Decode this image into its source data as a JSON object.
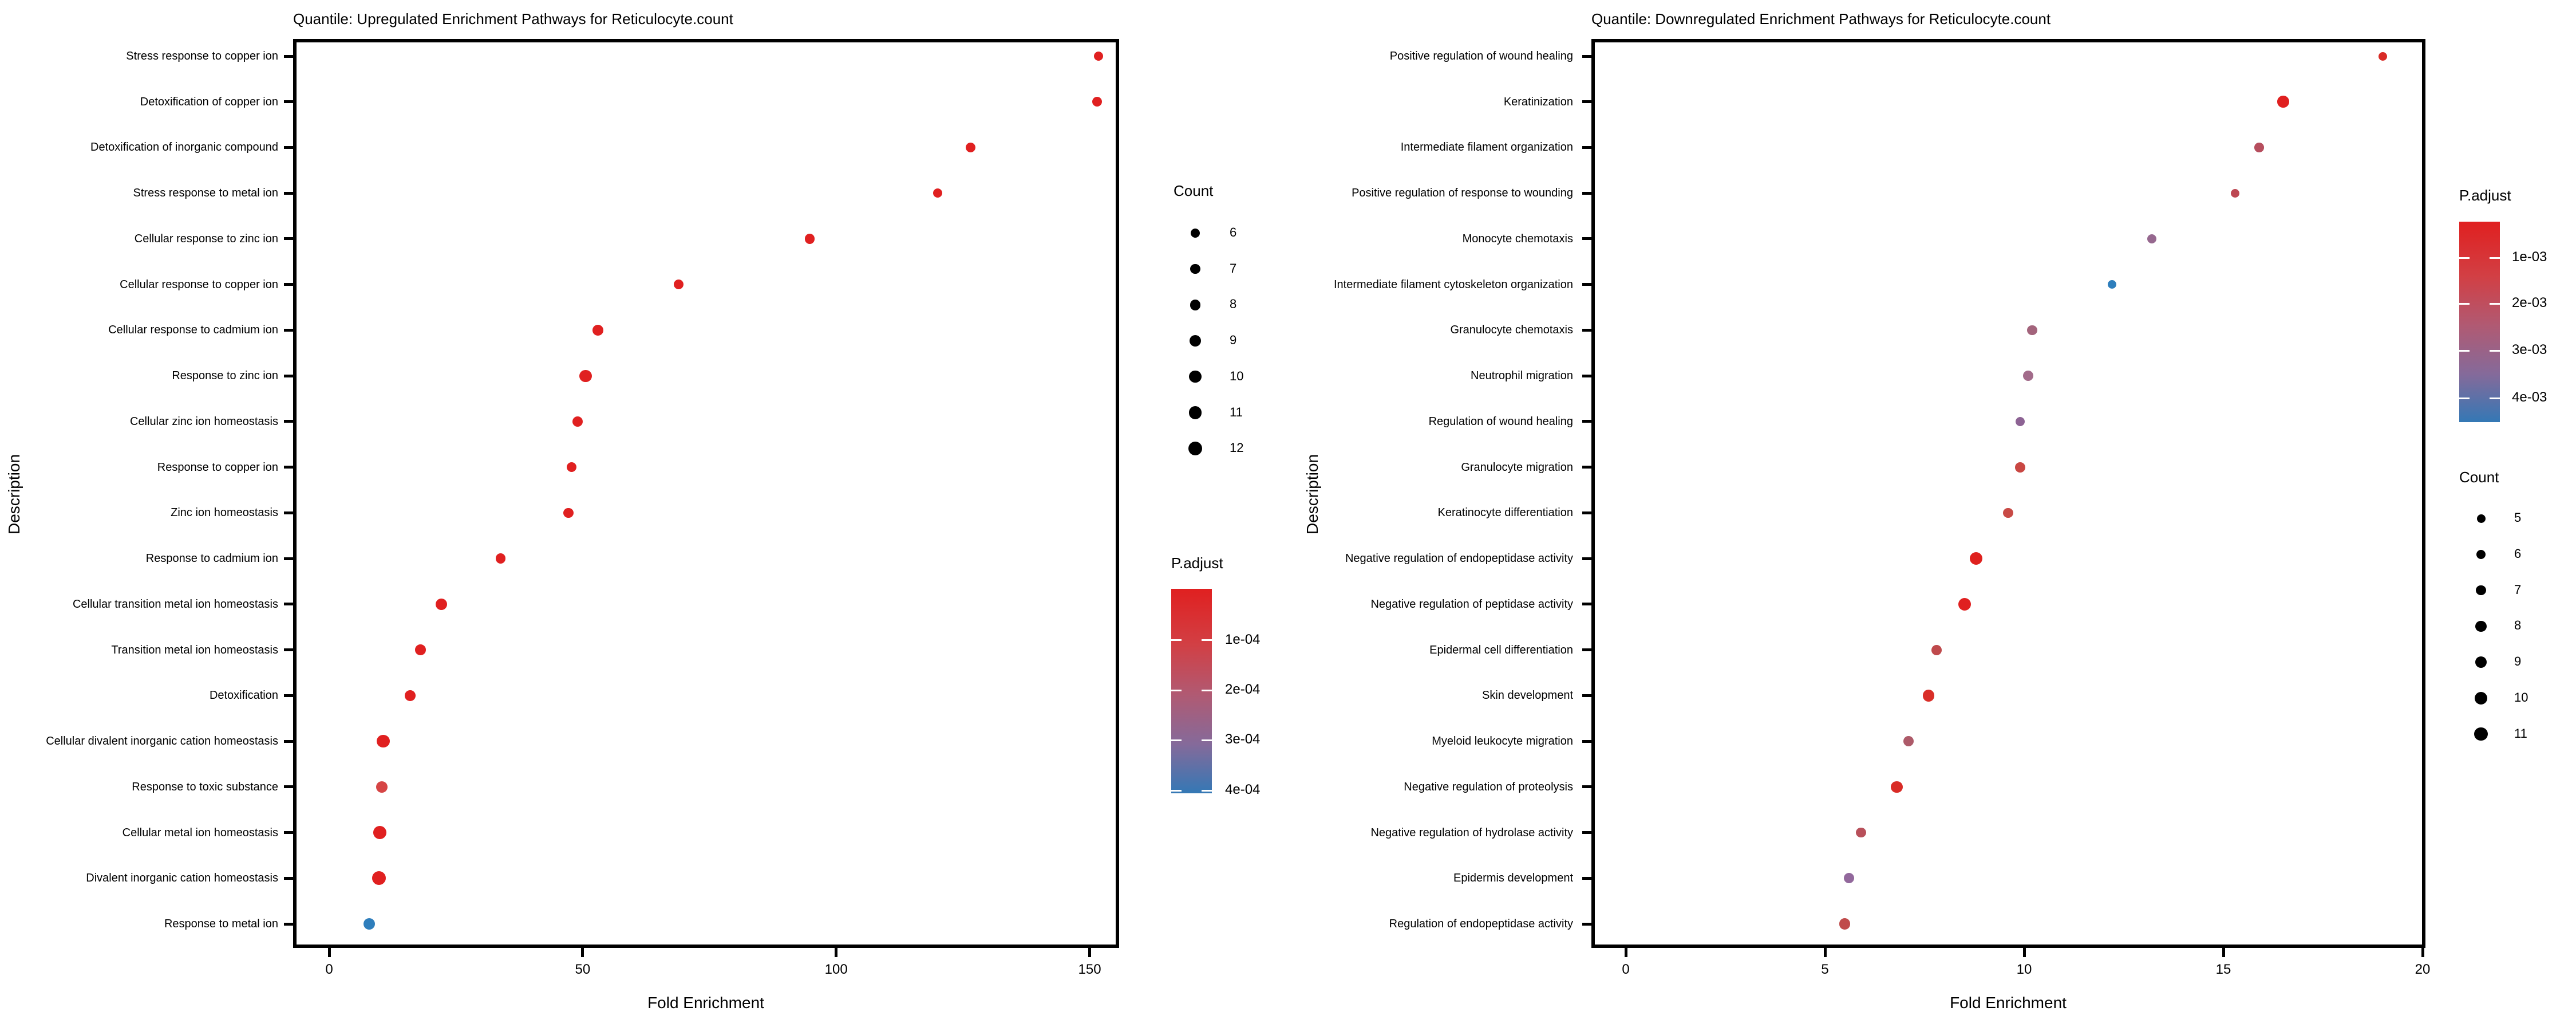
{
  "figure": {
    "background": "#ffffff"
  },
  "chart_data": [
    {
      "type": "scatter",
      "title": "Quantile: Upregulated Enrichment Pathways for Reticulocyte.count",
      "xlabel": "Fold Enrichment",
      "ylabel": "Description",
      "xlim": [
        0,
        156
      ],
      "grid": false,
      "x_ticks": [
        0,
        50,
        100,
        150
      ],
      "categories": [
        "Stress response to copper ion",
        "Detoxification of copper ion",
        "Detoxification of inorganic compound",
        "Stress response to metal ion",
        "Cellular response to zinc ion",
        "Cellular response to copper ion",
        "Cellular response to cadmium ion",
        "Response to zinc ion",
        "Cellular zinc ion homeostasis",
        "Response to copper ion",
        "Zinc ion homeostasis",
        "Response to cadmium ion",
        "Cellular transition metal ion homeostasis",
        "Transition metal ion homeostasis",
        "Detoxification",
        "Cellular divalent inorganic cation homeostasis",
        "Response to toxic substance",
        "Cellular metal ion homeostasis",
        "Divalent inorganic cation homeostasis",
        "Response to metal ion"
      ],
      "series": [
        {
          "name": "Fold Enrichment",
          "values": [
            151.8,
            151.5,
            126.5,
            120.0,
            94.8,
            68.9,
            53.0,
            50.6,
            49.0,
            47.8,
            47.2,
            33.8,
            22.1,
            18.0,
            16.0,
            10.7,
            10.4,
            10.0,
            9.8,
            7.9
          ]
        },
        {
          "name": "Count",
          "values": [
            6,
            7,
            7,
            6,
            7,
            7,
            8,
            10,
            8,
            7,
            7,
            7,
            9,
            8,
            8,
            11,
            9,
            11,
            12,
            9
          ]
        },
        {
          "name": "P.adjust (approx)",
          "values": [
            "2e-05",
            "2e-05",
            "3e-05",
            "3e-05",
            "5e-05",
            "8e-05",
            "5e-05",
            "5e-05",
            "6e-05",
            "7e-05",
            "8e-05",
            "1.0e-04",
            "9e-05",
            "1.0e-04",
            "1.2e-04",
            "1.0e-04",
            "1.6e-04",
            "1.0e-04",
            "1.0e-04",
            "3.9e-04"
          ]
        }
      ],
      "point_colors": [
        "#e02020",
        "#e02020",
        "#e02020",
        "#e02020",
        "#e02020",
        "#e02020",
        "#e02020",
        "#e02020",
        "#e02020",
        "#e02020",
        "#e02020",
        "#e02020",
        "#e02020",
        "#e02020",
        "#e02020",
        "#e02020",
        "#d64545",
        "#e02020",
        "#e02020",
        "#2e7ebc"
      ],
      "count_legend": {
        "title": "Count",
        "values": [
          6,
          7,
          8,
          9,
          10,
          11,
          12
        ]
      },
      "padjust_legend": {
        "title": "P.adjust",
        "tick_labels": [
          "1e-04",
          "2e-04",
          "3e-04",
          "4e-04"
        ],
        "top_color": "#e02020",
        "bottom_color": "#3478b5"
      }
    },
    {
      "type": "scatter",
      "title": "Quantile: Downregulated Enrichment Pathways for Reticulocyte.count",
      "xlabel": "Fold Enrichment",
      "ylabel": "Description",
      "xlim": [
        0,
        20.5
      ],
      "grid": false,
      "x_ticks": [
        0,
        5,
        10,
        15,
        20
      ],
      "categories": [
        "Positive regulation of wound healing",
        "Keratinization",
        "Intermediate filament organization",
        "Positive regulation of response to wounding",
        "Monocyte chemotaxis",
        "Intermediate filament cytoskeleton organization",
        "Granulocyte chemotaxis",
        "Neutrophil migration",
        "Regulation of wound healing",
        "Granulocyte migration",
        "Keratinocyte differentiation",
        "Negative regulation of endopeptidase activity",
        "Negative regulation of peptidase activity",
        "Epidermal cell differentiation",
        "Skin development",
        "Myeloid leukocyte migration",
        "Negative regulation of proteolysis",
        "Negative regulation of hydrolase activity",
        "Epidermis development",
        "Regulation of endopeptidase activity"
      ],
      "series": [
        {
          "name": "Fold Enrichment",
          "values": [
            19.0,
            16.5,
            15.9,
            15.3,
            13.2,
            12.2,
            10.2,
            10.1,
            9.9,
            9.9,
            9.6,
            8.8,
            8.5,
            7.8,
            7.6,
            7.1,
            6.8,
            5.9,
            5.6,
            5.5
          ]
        },
        {
          "name": "Count",
          "values": [
            5,
            9,
            6,
            5,
            6,
            5,
            7,
            7,
            6,
            7,
            7,
            10,
            10,
            7,
            9,
            7,
            9,
            7,
            7,
            8
          ]
        },
        {
          "name": "P.adjust (approx)",
          "values": [
            "8e-04",
            "5e-04",
            "2.0e-03",
            "1.8e-03",
            "3.0e-03",
            "4.5e-03",
            "2.5e-03",
            "2.8e-03",
            "3.2e-03",
            "1.2e-03",
            "1.2e-03",
            "5e-04",
            "5e-04",
            "1.5e-03",
            "8e-04",
            "2.2e-03",
            "9e-04",
            "2.0e-03",
            "3.0e-03",
            "1.4e-03"
          ]
        }
      ],
      "point_colors": [
        "#d92b26",
        "#e02020",
        "#b64e5e",
        "#bd4752",
        "#96688f",
        "#2e7ebc",
        "#a3647c",
        "#a26b8a",
        "#8d6394",
        "#c94743",
        "#c84a45",
        "#df211e",
        "#e02020",
        "#bf4a4c",
        "#d92e28",
        "#ad5a69",
        "#d92b26",
        "#b8505a",
        "#92689c",
        "#c04b4b"
      ],
      "count_legend": {
        "title": "Count",
        "values": [
          5,
          6,
          7,
          8,
          9,
          10,
          11
        ]
      },
      "padjust_legend": {
        "title": "P.adjust",
        "tick_labels": [
          "1e-03",
          "2e-03",
          "3e-03",
          "4e-03"
        ],
        "top_color": "#e02020",
        "bottom_color": "#3478b5"
      }
    }
  ]
}
